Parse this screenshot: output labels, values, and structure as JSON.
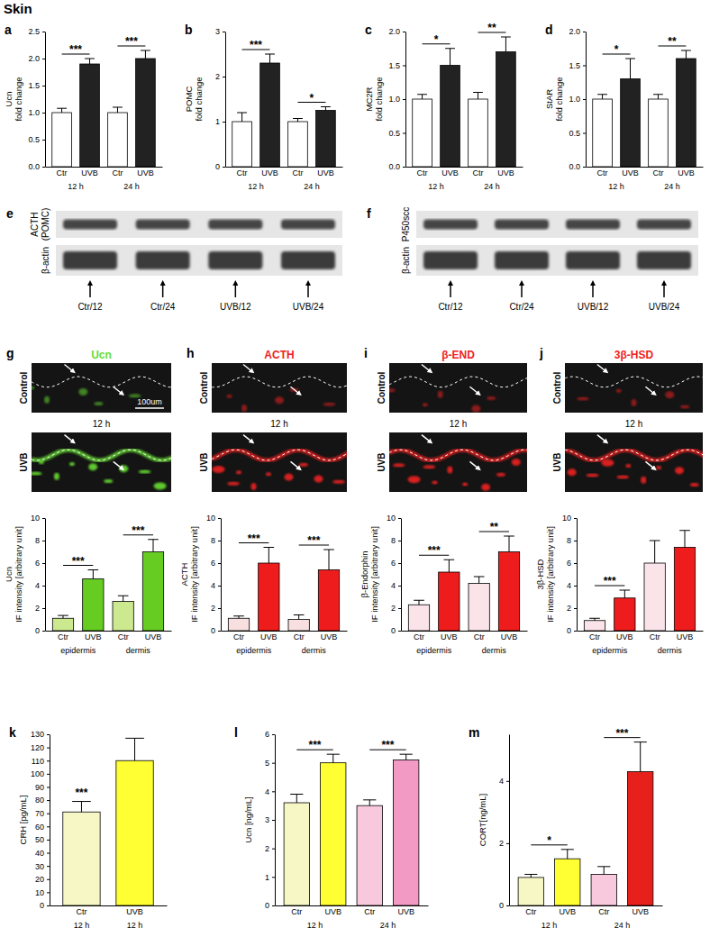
{
  "figure": {
    "title": "Skin",
    "blots": [
      {
        "panel": "e",
        "bands": [
          [
            "ACTH",
            "(POMC)"
          ],
          [
            "β-actin"
          ]
        ],
        "lanes": [
          "Ctr/12",
          "Ctr/24",
          "UVB/12",
          "UVB/24"
        ]
      },
      {
        "panel": "f",
        "bands": [
          [
            "P450scc"
          ],
          [
            "β-actin"
          ]
        ],
        "lanes": [
          "Ctr/12",
          "Ctr/24",
          "UVB/12",
          "UVB/24"
        ]
      }
    ],
    "images": [
      {
        "panel": "g",
        "stain": "Ucn",
        "color": "#66dd33",
        "rows": [
          "Control",
          "UVB"
        ],
        "time": "12 h",
        "scale": "100um"
      },
      {
        "panel": "h",
        "stain": "ACTH",
        "color": "#ee2222",
        "rows": [
          "Control",
          "UVB"
        ],
        "time": "12 h"
      },
      {
        "panel": "i",
        "stain": "β-END",
        "color": "#ee2222",
        "rows": [
          "Control",
          "UVB"
        ],
        "time": "12 h"
      },
      {
        "panel": "j",
        "stain": "3β-HSD",
        "color": "#ee2222",
        "rows": [
          "Control",
          "UVB"
        ],
        "time": "12 h"
      }
    ]
  },
  "chart_data": [
    {
      "panel": "a",
      "type": "bar",
      "ylabel": [
        "Ucn",
        "fold change"
      ],
      "categories": [
        "Ctr",
        "UVB",
        "Ctr",
        "UVB"
      ],
      "groups": [
        "12 h",
        "24 h"
      ],
      "values": [
        1.0,
        1.9,
        1.0,
        2.0
      ],
      "errors": [
        0.08,
        0.1,
        0.1,
        0.15
      ],
      "colors": [
        "#ffffff",
        "#222222",
        "#ffffff",
        "#222222"
      ],
      "ylim": [
        0,
        2.5
      ],
      "yticks": [
        {
          "value": 0,
          "label": "0.0"
        },
        {
          "value": 0.5,
          "label": "0.5"
        },
        {
          "value": 1,
          "label": "1.0"
        },
        {
          "value": 1.5,
          "label": "1.5"
        },
        {
          "value": 2,
          "label": "2.0"
        },
        {
          "value": 2.5,
          "label": "2.5"
        }
      ],
      "annotations": [
        "***",
        "***"
      ],
      "grid": false
    },
    {
      "panel": "b",
      "type": "bar",
      "ylabel": [
        "POMC",
        "fold change"
      ],
      "categories": [
        "Ctr",
        "UVB",
        "Ctr",
        "UVB"
      ],
      "groups": [
        "12 h",
        "24 h"
      ],
      "values": [
        1.0,
        2.3,
        1.0,
        1.25
      ],
      "errors": [
        0.2,
        0.2,
        0.07,
        0.08
      ],
      "colors": [
        "#ffffff",
        "#222222",
        "#ffffff",
        "#222222"
      ],
      "ylim": [
        0,
        3
      ],
      "yticks": [
        0,
        1,
        2,
        3
      ],
      "annotations": [
        "***",
        "*"
      ],
      "grid": false
    },
    {
      "panel": "c",
      "type": "bar",
      "ylabel": [
        "MC2R",
        "fold change"
      ],
      "categories": [
        "Ctr",
        "UVB",
        "Ctr",
        "UVB"
      ],
      "groups": [
        "12 h",
        "24 h"
      ],
      "values": [
        1.0,
        1.5,
        1.0,
        1.7
      ],
      "errors": [
        0.07,
        0.25,
        0.1,
        0.22
      ],
      "colors": [
        "#ffffff",
        "#222222",
        "#ffffff",
        "#222222"
      ],
      "ylim": [
        0,
        2
      ],
      "yticks": [
        {
          "value": 0,
          "label": "0.0"
        },
        {
          "value": 0.5,
          "label": "0.5"
        },
        {
          "value": 1,
          "label": "1.0"
        },
        {
          "value": 1.5,
          "label": "1.5"
        },
        {
          "value": 2,
          "label": "2.0"
        }
      ],
      "annotations": [
        "*",
        "**"
      ],
      "grid": false
    },
    {
      "panel": "d",
      "type": "bar",
      "ylabel": [
        "StAR",
        "fold change"
      ],
      "categories": [
        "Ctr",
        "UVB",
        "Ctr",
        "UVB"
      ],
      "groups": [
        "12 h",
        "24 h"
      ],
      "values": [
        1.0,
        1.3,
        1.0,
        1.6
      ],
      "errors": [
        0.07,
        0.3,
        0.07,
        0.12
      ],
      "colors": [
        "#ffffff",
        "#222222",
        "#ffffff",
        "#222222"
      ],
      "ylim": [
        0,
        2
      ],
      "yticks": [
        {
          "value": 0,
          "label": "0.0"
        },
        {
          "value": 0.5,
          "label": "0.5"
        },
        {
          "value": 1,
          "label": "1.0"
        },
        {
          "value": 1.5,
          "label": "1.5"
        },
        {
          "value": 2,
          "label": "2.0"
        }
      ],
      "annotations": [
        "*",
        "**"
      ],
      "grid": false
    },
    {
      "type": "bar",
      "ylabel": [
        "Ucn",
        "IF intensity [arbitrary unit]"
      ],
      "categories": [
        "Ctr",
        "UVB",
        "Ctr",
        "UVB"
      ],
      "groups": [
        "epidermis",
        "dermis"
      ],
      "values": [
        1.1,
        4.6,
        2.6,
        7.0
      ],
      "errors": [
        0.25,
        0.8,
        0.5,
        1.1
      ],
      "colors": [
        "#cce98f",
        "#66cc22",
        "#cce98f",
        "#66cc22"
      ],
      "ylim": [
        0,
        10
      ],
      "yticks": [
        0,
        2,
        4,
        6,
        8,
        10
      ],
      "annotations": [
        "***",
        "***"
      ],
      "grid": false
    },
    {
      "type": "bar",
      "ylabel": [
        "ACTH",
        "IF intensity [arbitrary unit]"
      ],
      "categories": [
        "Ctr",
        "UVB",
        "Ctr",
        "UVB"
      ],
      "groups": [
        "epidermis",
        "dermis"
      ],
      "values": [
        1.1,
        6.0,
        1.0,
        5.4
      ],
      "errors": [
        0.2,
        1.4,
        0.4,
        1.8
      ],
      "colors": [
        "#f8e0e0",
        "#ee1c1c",
        "#f8e0e0",
        "#ee1c1c"
      ],
      "ylim": [
        0,
        10
      ],
      "yticks": [
        0,
        2,
        4,
        6,
        8,
        10
      ],
      "annotations": [
        "***",
        "***"
      ],
      "grid": false
    },
    {
      "type": "bar",
      "ylabel": [
        "β-Endorphin",
        "IF intensity [arbitrary unit]"
      ],
      "categories": [
        "Ctr",
        "UVB",
        "Ctr",
        "UVB"
      ],
      "groups": [
        "epidermis",
        "dermis"
      ],
      "values": [
        2.3,
        5.2,
        4.2,
        7.0
      ],
      "errors": [
        0.4,
        1.1,
        0.6,
        1.4
      ],
      "colors": [
        "#fbe3ea",
        "#ee1c1c",
        "#fbe3ea",
        "#ee1c1c"
      ],
      "ylim": [
        0,
        10
      ],
      "yticks": [
        0,
        2,
        4,
        6,
        8,
        10
      ],
      "annotations": [
        "***",
        "**"
      ],
      "grid": false
    },
    {
      "type": "bar",
      "ylabel": [
        "3β-HSD",
        "IF intensity [arbitrary unit]"
      ],
      "categories": [
        "Ctr",
        "UVB",
        "Ctr",
        "UVB"
      ],
      "groups": [
        "epidermis",
        "dermis"
      ],
      "values": [
        0.9,
        2.9,
        6.0,
        7.4
      ],
      "errors": [
        0.2,
        0.7,
        2.0,
        1.5
      ],
      "colors": [
        "#fbe3ea",
        "#ee1c1c",
        "#fbe3ea",
        "#ee1c1c"
      ],
      "ylim": [
        0,
        10
      ],
      "yticks": [
        0,
        2,
        4,
        6,
        8,
        10
      ],
      "annotations": [
        "***",
        null
      ],
      "grid": false
    },
    {
      "panel": "k",
      "type": "bar",
      "ylabel": [
        "CRH  [pg/mL]"
      ],
      "categories": [
        "Ctr",
        "UVB"
      ],
      "groups": [
        "12 h",
        "12 h"
      ],
      "values": [
        71,
        110
      ],
      "errors": [
        8,
        17
      ],
      "colors": [
        "#f7f7c6",
        "#ffff33"
      ],
      "ylim": [
        0,
        130
      ],
      "yticks": [
        0,
        10,
        20,
        30,
        40,
        50,
        60,
        70,
        80,
        90,
        100,
        110,
        120,
        130
      ],
      "annotations": [
        "***"
      ],
      "grid": false
    },
    {
      "panel": "l",
      "type": "bar",
      "ylabel": [
        "Ucn [ng/mL]"
      ],
      "categories": [
        "Ctr",
        "UVB",
        "Ctr",
        "UVB"
      ],
      "groups": [
        "12 h",
        "24 h"
      ],
      "values": [
        3.6,
        5.0,
        3.5,
        5.1
      ],
      "errors": [
        0.3,
        0.3,
        0.2,
        0.2
      ],
      "colors": [
        "#f7f7c6",
        "#ffff33",
        "#f8c8dc",
        "#f29ac4"
      ],
      "ylim": [
        0,
        6
      ],
      "yticks": [
        0,
        1,
        2,
        3,
        4,
        5,
        6
      ],
      "annotations": [
        "***",
        "***"
      ],
      "grid": false
    },
    {
      "panel": "m",
      "type": "bar",
      "ylabel": [
        "CORT[ng/mL]"
      ],
      "categories": [
        "Ctr",
        "UVB",
        "Ctr",
        "UVB"
      ],
      "groups": [
        "12 h",
        "24 h"
      ],
      "values": [
        0.9,
        1.5,
        1.0,
        4.3
      ],
      "errors": [
        0.1,
        0.3,
        0.25,
        0.95
      ],
      "colors": [
        "#f7f7c6",
        "#ffff33",
        "#f8c8dc",
        "#e8201c"
      ],
      "ylim": [
        0,
        5.5
      ],
      "yticks": [
        0,
        2,
        4
      ],
      "annotations": [
        "*",
        "***"
      ],
      "grid": false
    }
  ]
}
